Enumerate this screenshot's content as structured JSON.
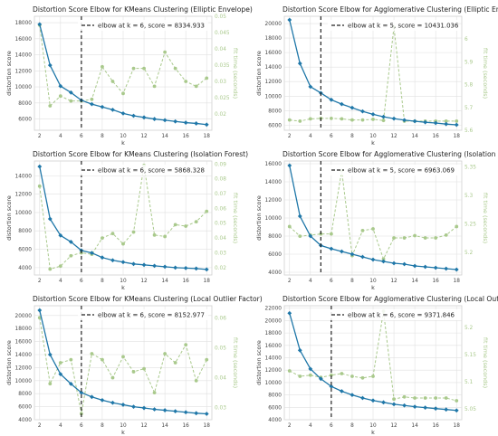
{
  "colors": {
    "distortion": "#1f77a8",
    "fit_time": "#a9c98c",
    "elbow": "#222222",
    "grid": "#e0e0e0"
  },
  "chart_data": [
    {
      "type": "line",
      "title": "Distortion Score Elbow for KMeans Clustering (Elliptic Envelope)",
      "xlabel": "k",
      "ylabel": "distortion score",
      "y2label": "fit time (seconds)",
      "x": [
        2,
        3,
        4,
        5,
        6,
        7,
        8,
        9,
        10,
        11,
        12,
        13,
        14,
        15,
        16,
        17,
        18
      ],
      "xticks": [
        2,
        4,
        6,
        8,
        10,
        12,
        14,
        16,
        18
      ],
      "xlim": [
        1.5,
        18.5
      ],
      "ylim": [
        4600,
        18800
      ],
      "yticks": [
        6000,
        8000,
        10000,
        12000,
        14000,
        16000,
        18000
      ],
      "y2lim": [
        0.015,
        0.05
      ],
      "y2ticks": [
        0.02,
        0.025,
        0.03,
        0.035,
        0.04,
        0.045,
        0.05
      ],
      "series": [
        {
          "axis": "left",
          "values": [
            17800,
            12700,
            10100,
            9300,
            8335,
            7850,
            7500,
            7150,
            6700,
            6400,
            6200,
            6000,
            5850,
            5700,
            5550,
            5450,
            5300
          ]
        },
        {
          "axis": "right",
          "values": [
            0.0473,
            0.0225,
            0.0255,
            0.024,
            0.024,
            0.0245,
            0.0345,
            0.03,
            0.0263,
            0.034,
            0.034,
            0.0285,
            0.039,
            0.034,
            0.03,
            0.0285,
            0.031
          ]
        }
      ],
      "elbow_k": 6,
      "legend": "elbow at k = 6, score = 8334.933",
      "legend_loc": "upper right"
    },
    {
      "type": "line",
      "title": "Distortion Score Elbow for Agglomerative Clustering (Elliptic Envelope)",
      "xlabel": "k",
      "ylabel": "distortion score",
      "y2label": "fit time (seconds)",
      "x": [
        2,
        3,
        4,
        5,
        6,
        7,
        8,
        9,
        10,
        11,
        12,
        13,
        14,
        15,
        16,
        17,
        18
      ],
      "xticks": [
        2,
        4,
        6,
        8,
        10,
        12,
        14,
        16,
        18
      ],
      "xlim": [
        1.5,
        18.5
      ],
      "ylim": [
        5300,
        21000
      ],
      "yticks": [
        6000,
        8000,
        10000,
        12000,
        14000,
        16000,
        18000,
        20000
      ],
      "y2lim": [
        5.6,
        6.1
      ],
      "y2ticks": [
        5.6,
        5.7,
        5.8,
        5.9,
        6.0
      ],
      "series": [
        {
          "axis": "left",
          "values": [
            20500,
            14500,
            11300,
            10431,
            9500,
            8900,
            8400,
            7900,
            7500,
            7150,
            6900,
            6700,
            6550,
            6400,
            6300,
            6150,
            6050
          ]
        },
        {
          "axis": "right",
          "values": [
            5.645,
            5.64,
            5.65,
            5.652,
            5.652,
            5.65,
            5.645,
            5.645,
            5.648,
            5.643,
            6.053,
            5.64,
            5.64,
            5.64,
            5.64,
            5.64,
            5.64
          ]
        }
      ],
      "elbow_k": 5,
      "legend": "elbow at k = 5, score = 10431.036",
      "legend_loc": "upper right"
    },
    {
      "type": "line",
      "title": "Distortion Score Elbow for KMeans Clustering (Isolation Forest)",
      "xlabel": "k",
      "ylabel": "distortion score",
      "y2label": "fit time (seconds)",
      "x": [
        2,
        3,
        4,
        5,
        6,
        7,
        8,
        9,
        10,
        11,
        12,
        13,
        14,
        15,
        16,
        17,
        18
      ],
      "xticks": [
        2,
        4,
        6,
        8,
        10,
        12,
        14,
        16,
        18
      ],
      "xlim": [
        1.5,
        18.5
      ],
      "ylim": [
        3200,
        15600
      ],
      "yticks": [
        4000,
        6000,
        8000,
        10000,
        12000,
        14000
      ],
      "y2lim": [
        0.015,
        0.092
      ],
      "y2ticks": [
        0.02,
        0.03,
        0.04,
        0.05,
        0.06,
        0.07,
        0.08,
        0.09
      ],
      "series": [
        {
          "axis": "left",
          "values": [
            15000,
            9300,
            7500,
            6800,
            5868,
            5600,
            5100,
            4800,
            4600,
            4400,
            4300,
            4200,
            4100,
            4000,
            3950,
            3900,
            3800
          ]
        },
        {
          "axis": "right",
          "values": [
            0.075,
            0.019,
            0.021,
            0.028,
            0.03,
            0.029,
            0.04,
            0.043,
            0.036,
            0.044,
            0.089,
            0.042,
            0.041,
            0.049,
            0.048,
            0.051,
            0.058
          ]
        }
      ],
      "elbow_k": 6,
      "legend": "elbow at k = 6, score = 5868.328",
      "legend_loc": "upper right"
    },
    {
      "type": "line",
      "title": "Distortion Score Elbow for Agglomerative Clustering (Isolation Forest)",
      "xlabel": "k",
      "ylabel": "distortion score",
      "y2label": "fit time (seconds)",
      "x": [
        2,
        3,
        4,
        5,
        6,
        7,
        8,
        9,
        10,
        11,
        12,
        13,
        14,
        15,
        16,
        17,
        18
      ],
      "xticks": [
        2,
        4,
        6,
        8,
        10,
        12,
        14,
        16,
        18
      ],
      "xlim": [
        1.5,
        18.5
      ],
      "ylim": [
        3700,
        16300
      ],
      "yticks": [
        4000,
        6000,
        8000,
        10000,
        12000,
        14000,
        16000
      ],
      "y2lim": [
        5.16,
        5.36
      ],
      "y2ticks": [
        5.2,
        5.25,
        5.3,
        5.35
      ],
      "series": [
        {
          "axis": "left",
          "values": [
            15800,
            10200,
            8000,
            6963,
            6600,
            6300,
            6000,
            5700,
            5400,
            5200,
            5000,
            4900,
            4700,
            4600,
            4500,
            4400,
            4300
          ]
        },
        {
          "axis": "right",
          "values": [
            5.245,
            5.228,
            5.23,
            5.232,
            5.232,
            5.343,
            5.194,
            5.238,
            5.241,
            5.188,
            5.225,
            5.225,
            5.229,
            5.225,
            5.225,
            5.23,
            5.245
          ]
        }
      ],
      "elbow_k": 5,
      "legend": "elbow at k = 5, score = 6963.069",
      "legend_loc": "upper right"
    },
    {
      "type": "line",
      "title": "Distortion Score Elbow for KMeans Clustering (Local Outlier Factor)",
      "xlabel": "k",
      "ylabel": "distortion score",
      "y2label": "fit time (seconds)",
      "x": [
        2,
        3,
        4,
        5,
        6,
        7,
        8,
        9,
        10,
        11,
        12,
        13,
        14,
        15,
        16,
        17,
        18
      ],
      "xticks": [
        2,
        4,
        6,
        8,
        10,
        12,
        14,
        16,
        18
      ],
      "xlim": [
        1.5,
        18.5
      ],
      "ylim": [
        4000,
        21500
      ],
      "yticks": [
        4000,
        6000,
        8000,
        10000,
        12000,
        14000,
        16000,
        18000,
        20000
      ],
      "y2lim": [
        0.026,
        0.064
      ],
      "y2ticks": [
        0.03,
        0.04,
        0.05,
        0.06
      ],
      "series": [
        {
          "axis": "left",
          "values": [
            20800,
            14000,
            11000,
            9500,
            8153,
            7500,
            7000,
            6600,
            6300,
            6000,
            5800,
            5600,
            5450,
            5300,
            5150,
            5000,
            4900
          ]
        },
        {
          "axis": "right",
          "values": [
            0.06,
            0.038,
            0.045,
            0.046,
            0.028,
            0.048,
            0.046,
            0.04,
            0.047,
            0.042,
            0.043,
            0.035,
            0.048,
            0.045,
            0.051,
            0.039,
            0.046
          ]
        }
      ],
      "elbow_k": 6,
      "legend": "elbow at k = 6, score = 8152.977",
      "legend_loc": "upper right"
    },
    {
      "type": "line",
      "title": "Distortion Score Elbow for Agglomerative Clustering (Local Outlier Factor)",
      "xlabel": "k",
      "ylabel": "distortion score",
      "y2label": "fit time (seconds)",
      "x": [
        2,
        3,
        4,
        5,
        6,
        7,
        8,
        9,
        10,
        11,
        12,
        13,
        14,
        15,
        16,
        17,
        18
      ],
      "xticks": [
        2,
        4,
        6,
        8,
        10,
        12,
        14,
        16,
        18
      ],
      "xlim": [
        1.5,
        18.5
      ],
      "ylim": [
        4000,
        22400
      ],
      "yticks": [
        4000,
        6000,
        8000,
        10000,
        12000,
        14000,
        16000,
        18000,
        20000,
        22000
      ],
      "y2lim": [
        5.03,
        5.24
      ],
      "y2ticks": [
        5.05,
        5.1,
        5.15,
        5.2
      ],
      "series": [
        {
          "axis": "left",
          "values": [
            21200,
            15200,
            12200,
            10600,
            9372,
            8600,
            8000,
            7500,
            7100,
            6800,
            6500,
            6300,
            6100,
            5950,
            5800,
            5650,
            5500
          ]
        },
        {
          "axis": "right",
          "values": [
            5.12,
            5.11,
            5.112,
            5.108,
            5.112,
            5.115,
            5.11,
            5.107,
            5.11,
            5.23,
            5.068,
            5.072,
            5.07,
            5.07,
            5.07,
            5.07,
            5.065
          ]
        }
      ],
      "elbow_k": 6,
      "legend": "elbow at k = 6, score = 9371.846",
      "legend_loc": "upper right"
    }
  ]
}
